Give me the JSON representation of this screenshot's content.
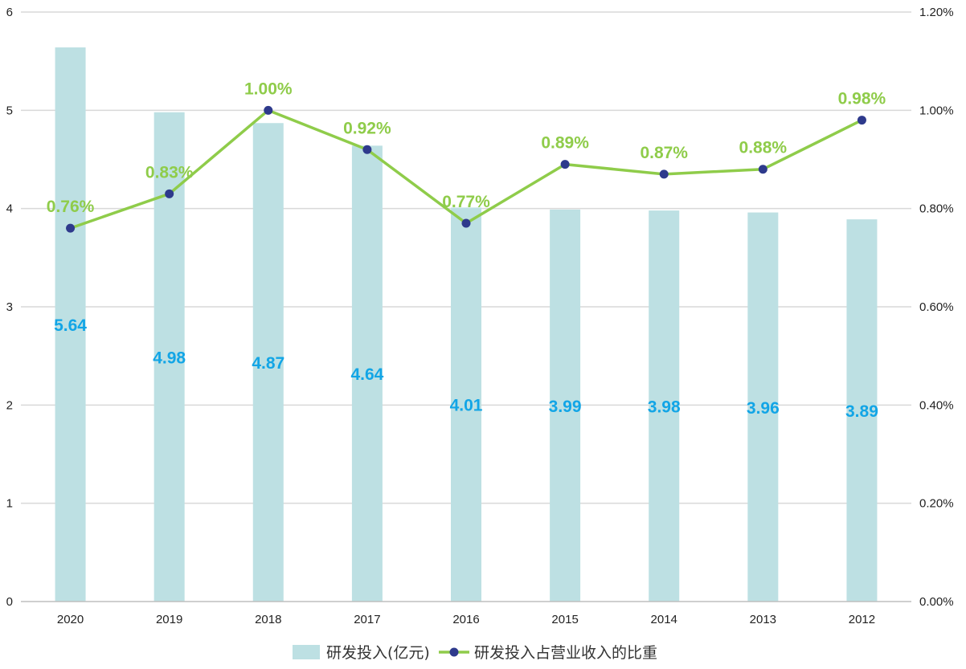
{
  "chart_data": {
    "type": "bar+line",
    "categories": [
      "2020",
      "2019",
      "2018",
      "2017",
      "2016",
      "2015",
      "2014",
      "2013",
      "2012"
    ],
    "series": [
      {
        "name": "研发投入(亿元)",
        "type": "bar",
        "axis": "left",
        "values": [
          5.64,
          4.98,
          4.87,
          4.64,
          4.01,
          3.99,
          3.98,
          3.96,
          3.89
        ],
        "labels": [
          "5.64",
          "4.98",
          "4.87",
          "4.64",
          "4.01",
          "3.99",
          "3.98",
          "3.96",
          "3.89"
        ],
        "color": "#bde0e3",
        "label_color": "#12a5e6"
      },
      {
        "name": "研发投入占营业收入的比重",
        "type": "line",
        "axis": "right",
        "values": [
          0.76,
          0.83,
          1.0,
          0.92,
          0.77,
          0.89,
          0.87,
          0.88,
          0.98
        ],
        "labels": [
          "0.76%",
          "0.83%",
          "1.00%",
          "0.92%",
          "0.77%",
          "0.89%",
          "0.87%",
          "0.88%",
          "0.98%"
        ],
        "color": "#8fcc4a",
        "marker_color": "#2e3a8c"
      }
    ],
    "y_left": {
      "min": 0,
      "max": 6,
      "ticks": [
        "0",
        "1",
        "2",
        "3",
        "4",
        "5",
        "6"
      ]
    },
    "y_right": {
      "min": 0,
      "max": 1.2,
      "ticks": [
        "0.00%",
        "0.20%",
        "0.40%",
        "0.60%",
        "0.80%",
        "1.00%",
        "1.20%"
      ]
    },
    "grid": true,
    "legend": "bottom",
    "gridline_color": "#d9d9d9",
    "axis_color": "#bfbfbf"
  }
}
